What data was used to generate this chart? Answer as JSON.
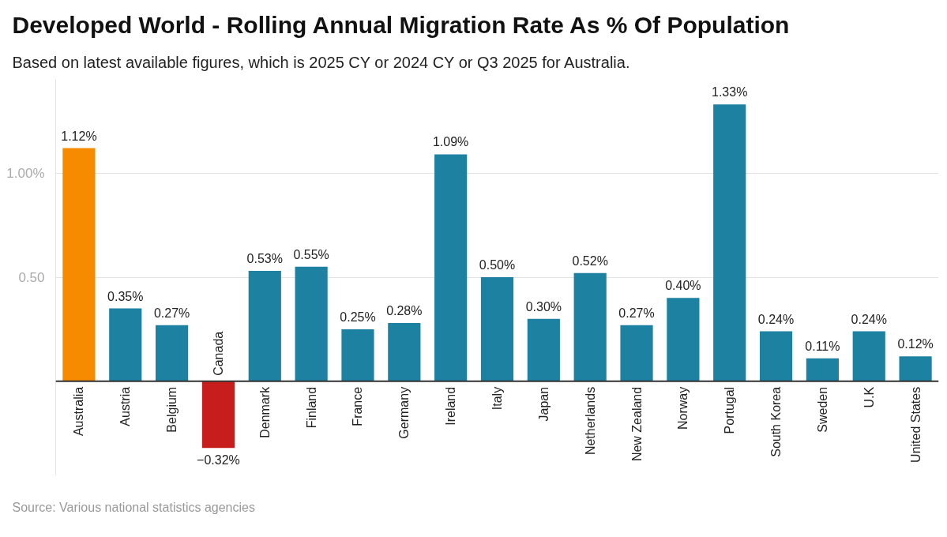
{
  "chart_data": {
    "type": "bar",
    "title": "Developed World - Rolling Annual Migration Rate As % Of Population",
    "subtitle": "Based on latest available figures, which is 2025 CY or 2024 CY or Q3 2025 for Australia.",
    "categories": [
      "Australia",
      "Austria",
      "Belgium",
      "Canada",
      "Denmark",
      "Finland",
      "France",
      "Germany",
      "Ireland",
      "Italy",
      "Japan",
      "Netherlands",
      "New Zealand",
      "Norway",
      "Portugal",
      "South Korea",
      "Sweden",
      "U.K",
      "United States"
    ],
    "values": [
      1.12,
      0.35,
      0.27,
      -0.32,
      0.53,
      0.55,
      0.25,
      0.28,
      1.09,
      0.5,
      0.3,
      0.52,
      0.27,
      0.4,
      1.33,
      0.24,
      0.11,
      0.24,
      0.12
    ],
    "colors": [
      "#f68b00",
      "#1d81a2",
      "#1d81a2",
      "#c71e1d",
      "#1d81a2",
      "#1d81a2",
      "#1d81a2",
      "#1d81a2",
      "#1d81a2",
      "#1d81a2",
      "#1d81a2",
      "#1d81a2",
      "#1d81a2",
      "#1d81a2",
      "#1d81a2",
      "#1d81a2",
      "#1d81a2",
      "#1d81a2",
      "#1d81a2"
    ],
    "value_labels": [
      "1.12%",
      "0.35%",
      "0.27%",
      "−0.32%",
      "0.53%",
      "0.55%",
      "0.25%",
      "0.28%",
      "1.09%",
      "0.50%",
      "0.30%",
      "0.52%",
      "0.27%",
      "0.40%",
      "1.33%",
      "0.24%",
      "0.11%",
      "0.24%",
      "0.12%"
    ],
    "ylim": [
      -0.45,
      1.45
    ],
    "yticks": [
      {
        "value": 0.5,
        "label": "0.50"
      },
      {
        "value": 1,
        "label": "1.00%"
      }
    ],
    "grid": "y",
    "annotations": [
      "Source: Various national statistics agencies"
    ]
  }
}
